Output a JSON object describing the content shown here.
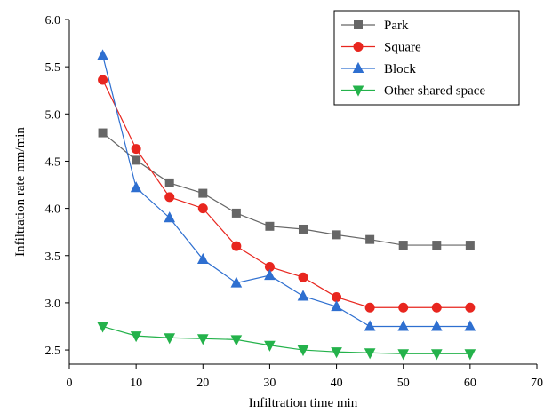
{
  "chart_data": {
    "type": "line",
    "xlabel": "Infiltration time  min",
    "ylabel": "Infiltration rate  mm/min",
    "xlim": [
      0,
      70
    ],
    "ylim": [
      2.35,
      6.0
    ],
    "x_ticks": [
      0,
      10,
      20,
      30,
      40,
      50,
      60,
      70
    ],
    "x_tick_labels": [
      "0",
      "10",
      "20",
      "30",
      "40",
      "50",
      "60",
      "70"
    ],
    "y_ticks": [
      2.5,
      3.0,
      3.5,
      4.0,
      4.5,
      5.0,
      5.5,
      6.0
    ],
    "y_tick_labels": [
      "2.5",
      "3.0",
      "3.5",
      "4.0",
      "4.5",
      "5.0",
      "5.5",
      "6.0"
    ],
    "grid": false,
    "legend_position": "top-right",
    "x": [
      5,
      10,
      15,
      20,
      25,
      30,
      35,
      40,
      45,
      50,
      55,
      60
    ],
    "series": [
      {
        "name": "Park",
        "color": "#666666",
        "marker": "square",
        "values": [
          4.8,
          4.51,
          4.27,
          4.16,
          3.95,
          3.81,
          3.78,
          3.72,
          3.67,
          3.61,
          3.61,
          3.61
        ]
      },
      {
        "name": "Square",
        "color": "#e8261f",
        "marker": "circle",
        "values": [
          5.36,
          4.63,
          4.12,
          4.0,
          3.6,
          3.38,
          3.27,
          3.06,
          2.95,
          2.95,
          2.95,
          2.95
        ]
      },
      {
        "name": "Block",
        "color": "#2e6fd0",
        "marker": "triangle-up",
        "values": [
          5.62,
          4.22,
          3.9,
          3.46,
          3.21,
          3.29,
          3.07,
          2.96,
          2.75,
          2.75,
          2.75,
          2.75
        ]
      },
      {
        "name": "Other shared space",
        "color": "#24b24b",
        "marker": "triangle-down",
        "values": [
          2.75,
          2.65,
          2.63,
          2.62,
          2.61,
          2.55,
          2.5,
          2.48,
          2.47,
          2.46,
          2.46,
          2.46
        ]
      }
    ]
  }
}
